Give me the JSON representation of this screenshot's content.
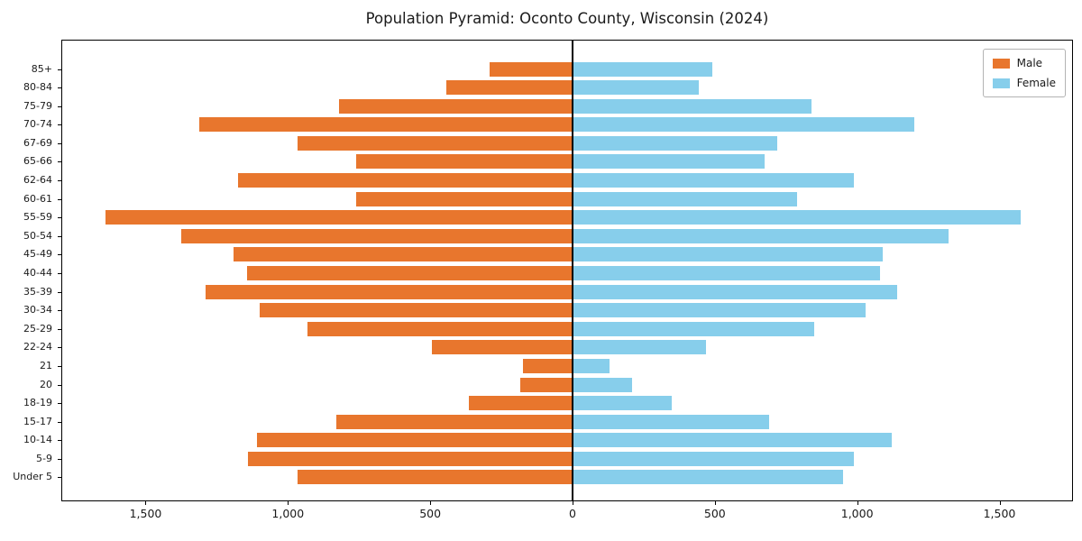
{
  "title": "Population Pyramid: Oconto County, Wisconsin (2024)",
  "legend": {
    "items": [
      {
        "label": "Male",
        "color": "#e8762d"
      },
      {
        "label": "Female",
        "color": "#87ceeb"
      }
    ],
    "position": "upper right"
  },
  "chart_data": {
    "type": "bar",
    "orientation": "horizontal",
    "subtype": "population-pyramid",
    "title": "Population Pyramid: Oconto County, Wisconsin (2024)",
    "categories": [
      "85+",
      "80-84",
      "75-79",
      "70-74",
      "67-69",
      "65-66",
      "62-64",
      "60-61",
      "55-59",
      "50-54",
      "45-49",
      "40-44",
      "35-39",
      "30-34",
      "25-29",
      "22-24",
      "21",
      "20",
      "18-19",
      "15-17",
      "10-14",
      "5-9",
      "Under 5"
    ],
    "series": [
      {
        "name": "Male",
        "side": "left",
        "color": "#e8762d",
        "values": [
          290,
          445,
          820,
          1310,
          965,
          760,
          1175,
          760,
          1640,
          1375,
          1190,
          1145,
          1290,
          1100,
          930,
          495,
          175,
          185,
          365,
          830,
          1110,
          1140,
          965
        ]
      },
      {
        "name": "Female",
        "side": "right",
        "color": "#87ceeb",
        "values": [
          490,
          445,
          840,
          1200,
          720,
          675,
          990,
          790,
          1575,
          1320,
          1090,
          1080,
          1140,
          1030,
          850,
          470,
          130,
          210,
          350,
          690,
          1120,
          990,
          950
        ]
      }
    ],
    "xlim": [
      -1793,
      1755
    ],
    "xticks": [
      -1500,
      -1000,
      -500,
      0,
      500,
      1000,
      1500
    ],
    "xtick_labels": [
      "1,500",
      "1,000",
      "500",
      "0",
      "500",
      "1,000",
      "1,500"
    ],
    "legend_position": "upper right",
    "grid": false,
    "zero_line_color": "#000000",
    "axis_color": "#000000",
    "background_color": "#ffffff"
  }
}
